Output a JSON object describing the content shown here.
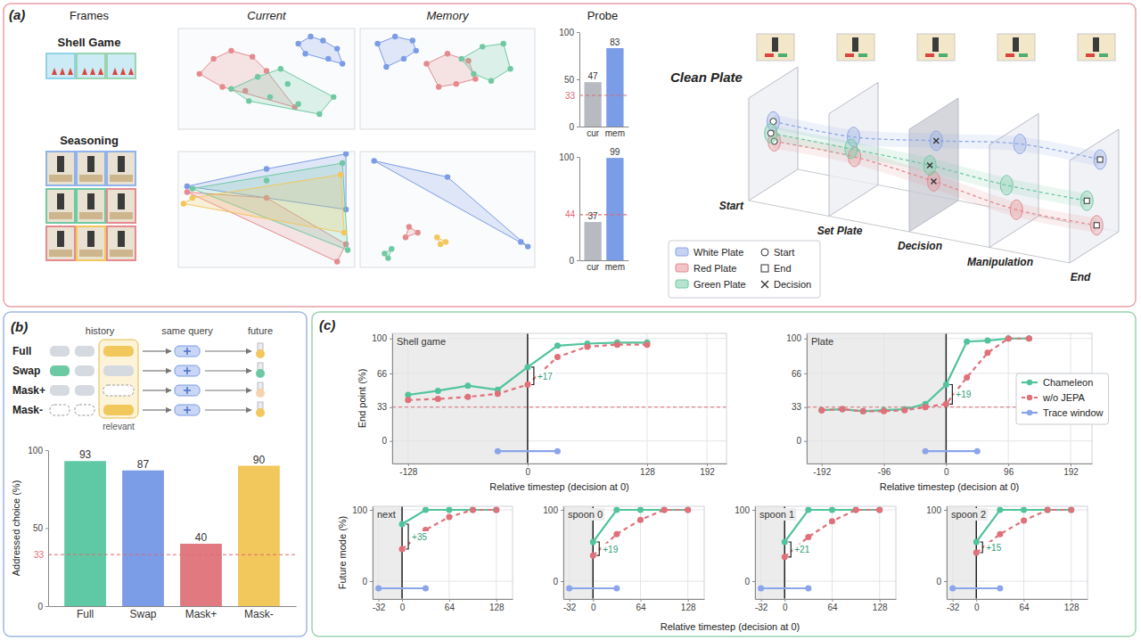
{
  "panels": {
    "a": {
      "label": "(a)",
      "headers": [
        "Frames",
        "Current",
        "Memory",
        "Probe"
      ],
      "rows": [
        "Shell Game",
        "Seasoning"
      ]
    },
    "clean_plate": {
      "title": "Clean Plate",
      "stages": [
        "Start",
        "Set Plate",
        "Decision",
        "Manipulation",
        "End"
      ],
      "legend": [
        {
          "name": "White Plate",
          "color": "#8ea6e6"
        },
        {
          "name": "Red Plate",
          "color": "#e58a8f"
        },
        {
          "name": "Green Plate",
          "color": "#6fc9a2"
        }
      ],
      "markers": [
        "Start",
        "End",
        "Decision"
      ]
    },
    "b": {
      "label": "(b)",
      "headers": [
        "history",
        "same query",
        "future"
      ],
      "rows": [
        "Full",
        "Swap",
        "Mask+",
        "Mask-"
      ],
      "highlight": "relevant"
    },
    "c": {
      "label": "(c)",
      "xlabel": "Relative timestep (decision at 0)"
    }
  },
  "chart_data": [
    {
      "type": "scatter",
      "tick_labels": false,
      "xlim": [
        0,
        10
      ],
      "ylim": [
        0,
        10
      ],
      "series": [
        {
          "color": "#e58a8f",
          "x": [
            1.2,
            2.0,
            3.0,
            4.2,
            5.0,
            2.5,
            3.8,
            6.6
          ],
          "values": [
            5.5,
            7.0,
            7.8,
            7.2,
            5.8,
            4.2,
            3.8,
            2.2
          ]
        },
        {
          "color": "#6fc9a2",
          "x": [
            3.0,
            4.5,
            5.8,
            6.2,
            4.0,
            5.2,
            6.8,
            8.0,
            8.8
          ],
          "values": [
            4.0,
            5.2,
            6.0,
            4.5,
            2.8,
            3.2,
            2.5,
            1.5,
            3.2
          ]
        },
        {
          "color": "#7b9ce6",
          "x": [
            6.8,
            7.5,
            8.2,
            9.0,
            8.5,
            7.2,
            9.3
          ],
          "values": [
            8.5,
            9.2,
            8.8,
            8.0,
            7.0,
            7.5,
            6.5
          ]
        }
      ]
    },
    {
      "type": "scatter",
      "tick_labels": false,
      "xlim": [
        0,
        10
      ],
      "ylim": [
        0,
        10
      ],
      "series": [
        {
          "color": "#7b9ce6",
          "x": [
            1.0,
            2.0,
            3.0,
            2.5,
            1.5,
            3.2
          ],
          "values": [
            8.5,
            9.2,
            8.8,
            7.0,
            6.2,
            7.8
          ]
        },
        {
          "color": "#e58a8f",
          "x": [
            3.8,
            5.0,
            6.2,
            5.5,
            4.5,
            6.6
          ],
          "values": [
            6.5,
            7.5,
            6.8,
            4.5,
            4.2,
            5.0
          ]
        },
        {
          "color": "#6fc9a2",
          "x": [
            5.8,
            7.0,
            8.2,
            8.6,
            7.5,
            6.5
          ],
          "values": [
            7.0,
            8.2,
            8.5,
            6.0,
            4.8,
            5.5
          ]
        }
      ]
    },
    {
      "type": "bar",
      "categories": [
        "cur",
        "mem"
      ],
      "values": [
        47,
        83
      ],
      "colors": [
        "#b7bac1",
        "#7b9ce6"
      ],
      "ylim": [
        0,
        100
      ],
      "yticks": [
        0,
        50,
        100
      ],
      "chance": 33,
      "data_labels": true
    },
    {
      "type": "scatter",
      "tick_labels": false,
      "xlim": [
        0,
        10
      ],
      "ylim": [
        0,
        10
      ],
      "series": [
        {
          "color": "#7b9ce6",
          "x": [
            0.5,
            5.0,
            9.5,
            9.5
          ],
          "values": [
            7.0,
            8.5,
            9.8,
            5.0
          ]
        },
        {
          "color": "#e58a8f",
          "x": [
            0.5,
            5.0,
            9.5,
            9.0
          ],
          "values": [
            6.5,
            6.0,
            2.0,
            0.5
          ]
        },
        {
          "color": "#6fc9a2",
          "x": [
            0.8,
            5.0,
            9.3,
            9.6
          ],
          "values": [
            6.8,
            7.5,
            9.0,
            1.5
          ]
        },
        {
          "color": "#f2c75c",
          "x": [
            0.3,
            0.8,
            9.4,
            9.2
          ],
          "values": [
            5.5,
            6.0,
            3.0,
            8.0
          ]
        }
      ]
    },
    {
      "type": "scatter",
      "tick_labels": false,
      "xlim": [
        0,
        10
      ],
      "ylim": [
        0,
        10
      ],
      "series": [
        {
          "color": "#7b9ce6",
          "x": [
            0.8,
            5.0,
            9.2,
            9.6
          ],
          "values": [
            9.2,
            7.8,
            2.2,
            1.8
          ]
        },
        {
          "color": "#e58a8f",
          "x": [
            2.8,
            3.3,
            2.6
          ],
          "values": [
            3.5,
            3.0,
            2.6
          ]
        },
        {
          "color": "#6fc9a2",
          "x": [
            1.4,
            1.8,
            1.6
          ],
          "values": [
            1.2,
            1.6,
            0.8
          ]
        },
        {
          "color": "#f2c75c",
          "x": [
            4.4,
            4.9,
            4.6
          ],
          "values": [
            2.6,
            2.2,
            2.0
          ]
        }
      ]
    },
    {
      "type": "bar",
      "categories": [
        "cur",
        "mem"
      ],
      "values": [
        37,
        99
      ],
      "colors": [
        "#b7bac1",
        "#7b9ce6"
      ],
      "ylim": [
        0,
        100
      ],
      "yticks": [
        0,
        100
      ],
      "chance": 44,
      "data_labels": true
    },
    {
      "type": "bar",
      "categories": [
        "Full",
        "Swap",
        "Mask+",
        "Mask-"
      ],
      "values": [
        93,
        87,
        40,
        90
      ],
      "colors": [
        "#5fc9a5",
        "#7b9ce6",
        "#e07a80",
        "#f2c75c"
      ],
      "ylabel": "Addressed choice (%)",
      "ylim": [
        0,
        100
      ],
      "yticks": [
        0,
        50,
        100
      ],
      "chance": 33,
      "data_labels": true
    },
    {
      "type": "line",
      "title": "Shell game",
      "xlabel": "Relative timestep (decision at 0)",
      "ylabel": "End point (%)",
      "xlim": [
        -145,
        213
      ],
      "ylim": [
        -22,
        105
      ],
      "xticks": [
        -128,
        0,
        128,
        192
      ],
      "yticks": [
        0,
        33,
        66,
        100
      ],
      "grid": true,
      "decision": 0,
      "chance": 33,
      "annotation": "+17",
      "series": [
        {
          "color": "#52c49b",
          "marker": "circle",
          "line_style": "solid",
          "x": [
            -128,
            -96,
            -64,
            -32,
            0,
            32,
            64,
            96,
            128
          ],
          "values": [
            45,
            49,
            54,
            50,
            72,
            93,
            95,
            96,
            96
          ]
        },
        {
          "color": "#e0707a",
          "marker": "circle",
          "line_style": "dashed",
          "x": [
            -128,
            -96,
            -64,
            -32,
            0,
            32,
            64,
            96,
            128
          ],
          "values": [
            40,
            41,
            43,
            46,
            55,
            82,
            92,
            94,
            94
          ]
        },
        {
          "color": "#8aa5ea",
          "marker": "circle",
          "line_style": "solid",
          "x": [
            -32,
            32
          ],
          "values": [
            -10,
            -10
          ]
        }
      ]
    },
    {
      "type": "line",
      "title": "Plate",
      "xlabel": "Relative timestep (decision at 0)",
      "xlim": [
        -215,
        225
      ],
      "ylim": [
        -22,
        105
      ],
      "xticks": [
        -192,
        -96,
        0,
        96,
        192
      ],
      "yticks": [
        0,
        33,
        66,
        100
      ],
      "grid": true,
      "decision": 0,
      "chance": 33,
      "annotation": "+19",
      "legend": "right",
      "series": [
        {
          "name": "Chameleon",
          "color": "#52c49b",
          "marker": "circle",
          "line_style": "solid",
          "x": [
            -192,
            -160,
            -128,
            -96,
            -64,
            -32,
            0,
            32,
            64,
            96,
            128
          ],
          "values": [
            30,
            31,
            29,
            30,
            31,
            36,
            55,
            97,
            98,
            100,
            100
          ]
        },
        {
          "name": "w/o JEPA",
          "color": "#e0707a",
          "marker": "circle",
          "line_style": "dashed",
          "x": [
            -192,
            -160,
            -128,
            -96,
            -64,
            -32,
            0,
            32,
            64,
            96,
            128
          ],
          "values": [
            30,
            31,
            29,
            29,
            30,
            33,
            36,
            62,
            86,
            100,
            100
          ]
        },
        {
          "name": "Trace window",
          "color": "#8aa5ea",
          "marker": "circle",
          "line_style": "solid",
          "x": [
            -32,
            48
          ],
          "values": [
            -10,
            -10
          ]
        }
      ]
    },
    {
      "type": "line",
      "title": "next",
      "ylabel": "Future mode (%)",
      "xlim": [
        -40,
        150
      ],
      "ylim": [
        -25,
        105
      ],
      "xticks": [
        -32,
        0,
        64,
        128
      ],
      "yticks": [
        0,
        100
      ],
      "grid": true,
      "decision": 0,
      "annotation": "+35",
      "series": [
        {
          "color": "#52c49b",
          "marker": "circle",
          "line_style": "solid",
          "x": [
            0,
            32,
            64,
            96,
            128
          ],
          "values": [
            80,
            100,
            100,
            100,
            100
          ]
        },
        {
          "color": "#e0707a",
          "marker": "circle",
          "line_style": "dashed",
          "x": [
            0,
            32,
            64,
            96,
            128
          ],
          "values": [
            45,
            72,
            90,
            100,
            100
          ]
        },
        {
          "color": "#8aa5ea",
          "marker": "circle",
          "line_style": "solid",
          "x": [
            -32,
            32
          ],
          "values": [
            -10,
            -10
          ]
        }
      ]
    },
    {
      "type": "line",
      "title": "spoon 0",
      "xlim": [
        -40,
        150
      ],
      "ylim": [
        -25,
        105
      ],
      "xticks": [
        -32,
        0,
        64,
        128
      ],
      "yticks": [
        0,
        100
      ],
      "grid": true,
      "decision": 0,
      "annotation": "+19",
      "series": [
        {
          "color": "#52c49b",
          "marker": "circle",
          "line_style": "solid",
          "x": [
            0,
            32,
            64,
            96,
            128
          ],
          "values": [
            55,
            100,
            100,
            100,
            100
          ]
        },
        {
          "color": "#e0707a",
          "marker": "circle",
          "line_style": "dashed",
          "x": [
            0,
            32,
            64,
            96,
            128
          ],
          "values": [
            36,
            66,
            86,
            100,
            100
          ]
        },
        {
          "color": "#8aa5ea",
          "marker": "circle",
          "line_style": "solid",
          "x": [
            -32,
            32
          ],
          "values": [
            -10,
            -10
          ]
        }
      ]
    },
    {
      "type": "line",
      "title": "spoon 1",
      "xlim": [
        -40,
        150
      ],
      "ylim": [
        -25,
        105
      ],
      "xticks": [
        -32,
        0,
        64,
        128
      ],
      "yticks": [
        0,
        100
      ],
      "grid": true,
      "decision": 0,
      "annotation": "+21",
      "series": [
        {
          "color": "#52c49b",
          "marker": "circle",
          "line_style": "solid",
          "x": [
            0,
            32,
            64,
            96,
            128
          ],
          "values": [
            55,
            100,
            100,
            100,
            100
          ]
        },
        {
          "color": "#e0707a",
          "marker": "circle",
          "line_style": "dashed",
          "x": [
            0,
            32,
            64,
            96,
            128
          ],
          "values": [
            34,
            62,
            84,
            100,
            100
          ]
        },
        {
          "color": "#8aa5ea",
          "marker": "circle",
          "line_style": "solid",
          "x": [
            -32,
            32
          ],
          "values": [
            -10,
            -10
          ]
        }
      ]
    },
    {
      "type": "line",
      "title": "spoon 2",
      "xlim": [
        -40,
        150
      ],
      "ylim": [
        -25,
        105
      ],
      "xticks": [
        -32,
        0,
        64,
        128
      ],
      "yticks": [
        0,
        100
      ],
      "grid": true,
      "decision": 0,
      "annotation": "+15",
      "series": [
        {
          "color": "#52c49b",
          "marker": "circle",
          "line_style": "solid",
          "x": [
            0,
            32,
            64,
            96,
            128
          ],
          "values": [
            55,
            100,
            100,
            100,
            100
          ]
        },
        {
          "color": "#e0707a",
          "marker": "circle",
          "line_style": "dashed",
          "x": [
            0,
            32,
            64,
            96,
            128
          ],
          "values": [
            40,
            66,
            85,
            100,
            100
          ]
        },
        {
          "color": "#8aa5ea",
          "marker": "circle",
          "line_style": "solid",
          "x": [
            -32,
            32
          ],
          "values": [
            -10,
            -10
          ]
        }
      ]
    }
  ]
}
